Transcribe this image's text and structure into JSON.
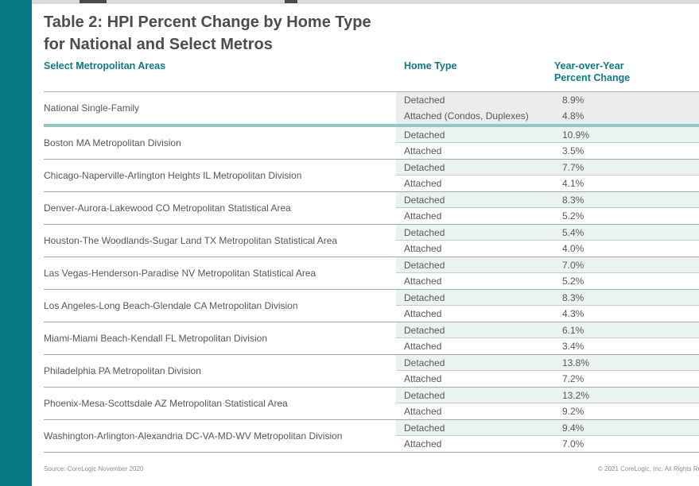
{
  "page": {
    "title_line1": "Table 2: HPI Percent Change by Home Type",
    "title_line2": "for National and Select Metros"
  },
  "columns": {
    "metro": "Select Metropolitan Areas",
    "home_type": "Home Type",
    "yoy_line1": "Year-over-Year",
    "yoy_line2": "Percent Change"
  },
  "table": {
    "national": {
      "name": "National Single-Family",
      "rows": [
        {
          "type": "Detached",
          "value": "8.9%"
        },
        {
          "type": "Attached (Condos, Duplexes)",
          "value": "4.8%"
        }
      ]
    },
    "groups": [
      {
        "name": "Boston MA Metropolitan Division",
        "rows": [
          {
            "type": "Detached",
            "value": "10.9%"
          },
          {
            "type": "Attached",
            "value": "3.5%"
          }
        ]
      },
      {
        "name": "Chicago-Naperville-Arlington Heights IL Metropolitan Division",
        "rows": [
          {
            "type": "Detached",
            "value": "7.7%"
          },
          {
            "type": "Attached",
            "value": "4.1%"
          }
        ]
      },
      {
        "name": "Denver-Aurora-Lakewood CO Metropolitan Statistical Area",
        "rows": [
          {
            "type": "Detached",
            "value": "8.3%"
          },
          {
            "type": "Attached",
            "value": "5.2%"
          }
        ]
      },
      {
        "name": "Houston-The Woodlands-Sugar Land TX Metropolitan Statistical Area",
        "rows": [
          {
            "type": "Detached",
            "value": "5.4%"
          },
          {
            "type": "Attached",
            "value": "4.0%"
          }
        ]
      },
      {
        "name": "Las Vegas-Henderson-Paradise NV Metropolitan Statistical Area",
        "rows": [
          {
            "type": "Detached",
            "value": "7.0%"
          },
          {
            "type": "Attached",
            "value": "5.2%"
          }
        ]
      },
      {
        "name": "Los Angeles-Long Beach-Glendale CA Metropolitan Division",
        "rows": [
          {
            "type": "Detached",
            "value": "8.3%"
          },
          {
            "type": "Attached",
            "value": "4.3%"
          }
        ]
      },
      {
        "name": "Miami-Miami Beach-Kendall FL Metropolitan Division",
        "rows": [
          {
            "type": "Detached",
            "value": "6.1%"
          },
          {
            "type": "Attached",
            "value": "3.4%"
          }
        ]
      },
      {
        "name": "Philadelphia PA Metropolitan Division",
        "rows": [
          {
            "type": "Detached",
            "value": "13.8%"
          },
          {
            "type": "Attached",
            "value": "7.2%"
          }
        ]
      },
      {
        "name": "Phoenix-Mesa-Scottsdale AZ Metropolitan Statistical Area",
        "rows": [
          {
            "type": "Detached",
            "value": "13.2%"
          },
          {
            "type": "Attached",
            "value": "9.2%"
          }
        ]
      },
      {
        "name": "Washington-Arlington-Alexandria DC-VA-MD-WV Metropolitan Division",
        "rows": [
          {
            "type": "Detached",
            "value": "9.4%"
          },
          {
            "type": "Attached",
            "value": "7.0%"
          }
        ]
      }
    ]
  },
  "footer": {
    "source": "Source: CoreLogic November 2020",
    "copyright": "© 2021 CoreLogic, Inc. All Rights Reserved."
  },
  "colors": {
    "brand_teal": "#087883",
    "header_teal": "#0E7B87",
    "divider_teal": "#93C7BF",
    "detached_row_bg": "#EAF3EF",
    "national_row_bg": "#ECECEC",
    "title_gray": "#4D4D4F",
    "text_gray": "#58585A"
  },
  "chart_data": {
    "type": "table",
    "title": "Table 2: HPI Percent Change by Home Type for National and Select Metros",
    "columns": [
      "Select Metropolitan Areas",
      "Home Type",
      "Year-over-Year Percent Change"
    ],
    "rows": [
      [
        "National Single-Family",
        "Detached",
        "8.9%"
      ],
      [
        "National Single-Family",
        "Attached (Condos, Duplexes)",
        "4.8%"
      ],
      [
        "Boston MA Metropolitan Division",
        "Detached",
        "10.9%"
      ],
      [
        "Boston MA Metropolitan Division",
        "Attached",
        "3.5%"
      ],
      [
        "Chicago-Naperville-Arlington Heights IL Metropolitan Division",
        "Detached",
        "7.7%"
      ],
      [
        "Chicago-Naperville-Arlington Heights IL Metropolitan Division",
        "Attached",
        "4.1%"
      ],
      [
        "Denver-Aurora-Lakewood CO Metropolitan Statistical Area",
        "Detached",
        "8.3%"
      ],
      [
        "Denver-Aurora-Lakewood CO Metropolitan Statistical Area",
        "Attached",
        "5.2%"
      ],
      [
        "Houston-The Woodlands-Sugar Land TX Metropolitan Statistical Area",
        "Detached",
        "5.4%"
      ],
      [
        "Houston-The Woodlands-Sugar Land TX Metropolitan Statistical Area",
        "Attached",
        "4.0%"
      ],
      [
        "Las Vegas-Henderson-Paradise NV Metropolitan Statistical Area",
        "Detached",
        "7.0%"
      ],
      [
        "Las Vegas-Henderson-Paradise NV Metropolitan Statistical Area",
        "Attached",
        "5.2%"
      ],
      [
        "Los Angeles-Long Beach-Glendale CA Metropolitan Division",
        "Detached",
        "8.3%"
      ],
      [
        "Los Angeles-Long Beach-Glendale CA Metropolitan Division",
        "Attached",
        "4.3%"
      ],
      [
        "Miami-Miami Beach-Kendall FL Metropolitan Division",
        "Detached",
        "6.1%"
      ],
      [
        "Miami-Miami Beach-Kendall FL Metropolitan Division",
        "Attached",
        "3.4%"
      ],
      [
        "Philadelphia PA Metropolitan Division",
        "Detached",
        "13.8%"
      ],
      [
        "Philadelphia PA Metropolitan Division",
        "Attached",
        "7.2%"
      ],
      [
        "Phoenix-Mesa-Scottsdale AZ Metropolitan Statistical Area",
        "Detached",
        "13.2%"
      ],
      [
        "Phoenix-Mesa-Scottsdale AZ Metropolitan Statistical Area",
        "Attached",
        "9.2%"
      ],
      [
        "Washington-Arlington-Alexandria DC-VA-MD-WV Metropolitan Division",
        "Detached",
        "9.4%"
      ],
      [
        "Washington-Arlington-Alexandria DC-VA-MD-WV Metropolitan Division",
        "Attached",
        "7.0%"
      ]
    ]
  }
}
